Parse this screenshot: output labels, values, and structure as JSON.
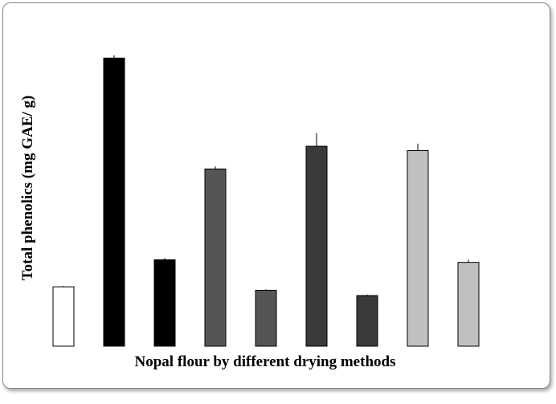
{
  "chart_data": {
    "type": "bar",
    "title": "",
    "xlabel": "Nopal flour by different drying methods",
    "ylabel": "Total phenolics (mg GAE/ g)",
    "categories": [
      "",
      "",
      "",
      "",
      "",
      "",
      "",
      "",
      ""
    ],
    "values": [
      68,
      330,
      99,
      203,
      64,
      229,
      58,
      224,
      96
    ],
    "errors": [
      1,
      3,
      2,
      3,
      1,
      15,
      1,
      8,
      3
    ],
    "colors": [
      "#ffffff",
      "#000000",
      "#000000",
      "#555555",
      "#555555",
      "#3a3a3a",
      "#3a3a3a",
      "#c0c0c0",
      "#c0c0c0"
    ],
    "ylim": [
      0,
      345
    ],
    "grid": false,
    "legend": "none"
  }
}
